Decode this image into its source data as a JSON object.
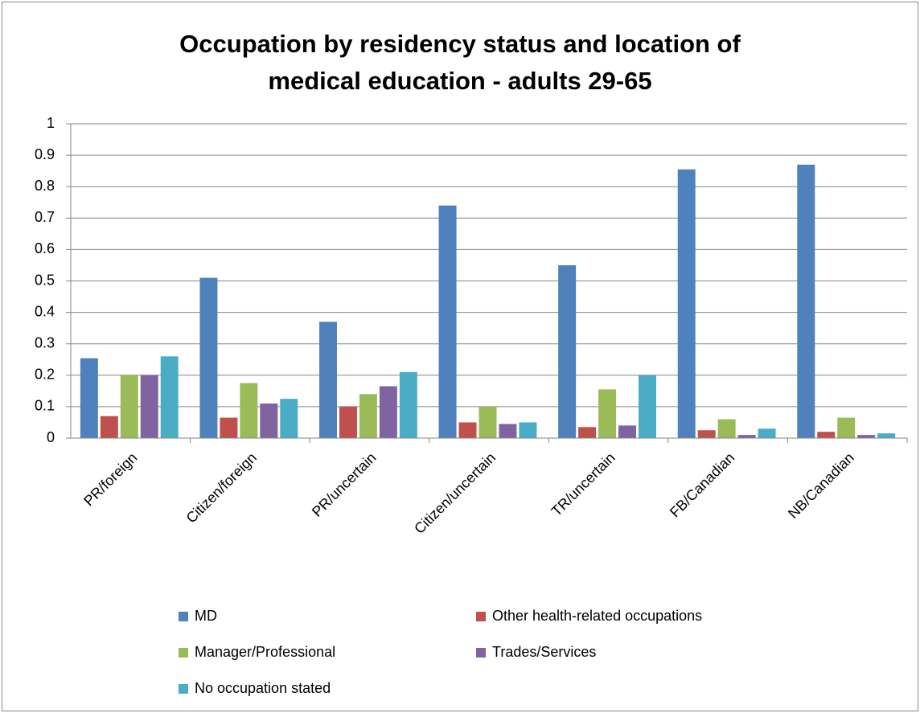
{
  "chart_data": {
    "type": "bar",
    "title": "Occupation by residency status and location of medical education - adults 29-65",
    "categories": [
      "PR/foreign",
      "Citizen/foreign",
      "PR/uncertain",
      "Citizen/uncertain",
      "TR/uncertain",
      "FB/Canadian",
      "NB/Canadian"
    ],
    "series": [
      {
        "name": "MD",
        "color": "#4f81bd",
        "values": [
          0.254,
          0.51,
          0.37,
          0.74,
          0.55,
          0.855,
          0.87
        ]
      },
      {
        "name": "Other health-related occupations",
        "color": "#c0504d",
        "values": [
          0.07,
          0.065,
          0.1,
          0.05,
          0.035,
          0.025,
          0.02
        ]
      },
      {
        "name": "Manager/Professional",
        "color": "#9bbb59",
        "values": [
          0.2,
          0.175,
          0.14,
          0.1,
          0.155,
          0.06,
          0.065
        ]
      },
      {
        "name": "Trades/Services",
        "color": "#8064a2",
        "values": [
          0.2,
          0.11,
          0.165,
          0.045,
          0.04,
          0.01,
          0.01
        ]
      },
      {
        "name": "No occupation stated",
        "color": "#4bacc6",
        "values": [
          0.26,
          0.125,
          0.21,
          0.05,
          0.2,
          0.03,
          0.015
        ]
      }
    ],
    "ylim": [
      0,
      1
    ],
    "yticks": [
      0,
      0.1,
      0.2,
      0.3,
      0.4,
      0.5,
      0.6,
      0.7,
      0.8,
      0.9,
      1
    ],
    "grid": true,
    "legend": "bottom"
  }
}
